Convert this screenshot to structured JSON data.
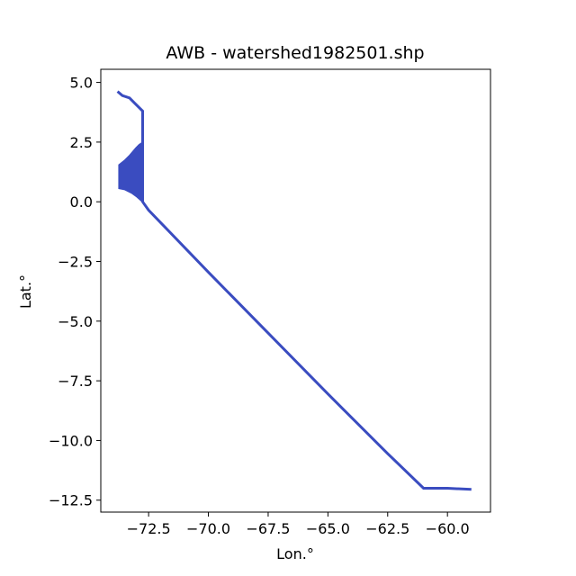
{
  "chart_data": {
    "type": "line",
    "title": "AWB - watershed1982501.shp",
    "xlabel": "Lon.°",
    "ylabel": "Lat.°",
    "xlim": [
      -74.5,
      -58.2
    ],
    "ylim": [
      -13.0,
      5.55
    ],
    "xticks": [
      -72.5,
      -70.0,
      -67.5,
      -65.0,
      -62.5,
      -60.0
    ],
    "xtick_labels": [
      "−72.5",
      "−70.0",
      "−67.5",
      "−65.0",
      "−62.5",
      "−60.0"
    ],
    "yticks": [
      5.0,
      2.5,
      0.0,
      -2.5,
      -5.0,
      -7.5,
      -10.0,
      -12.5
    ],
    "ytick_labels": [
      "5.0",
      "2.5",
      "0.0",
      "−2.5",
      "−5.0",
      "−7.5",
      "−10.0",
      "−12.5"
    ],
    "grid": false,
    "color": "#3a4cc0",
    "series": [
      {
        "points": [
          [
            -73.8,
            4.62
          ],
          [
            -73.6,
            4.45
          ],
          [
            -73.3,
            4.35
          ],
          [
            -73.1,
            4.15
          ],
          [
            -72.9,
            3.95
          ],
          [
            -72.75,
            3.8
          ],
          [
            -72.75,
            2.5
          ],
          [
            -72.75,
            0.0
          ],
          [
            -72.5,
            -0.35
          ],
          [
            -70.0,
            -2.95
          ],
          [
            -67.5,
            -5.5
          ],
          [
            -65.0,
            -8.05
          ],
          [
            -62.5,
            -10.55
          ],
          [
            -61.0,
            -12.0
          ],
          [
            -60.0,
            -12.0
          ],
          [
            -59.0,
            -12.05
          ]
        ]
      }
    ],
    "filled_region": {
      "points": [
        [
          -73.75,
          0.55
        ],
        [
          -73.75,
          1.55
        ],
        [
          -73.5,
          1.75
        ],
        [
          -73.3,
          1.95
        ],
        [
          -73.05,
          2.25
        ],
        [
          -72.9,
          2.4
        ],
        [
          -72.75,
          2.5
        ],
        [
          -72.75,
          -0.02
        ],
        [
          -73.0,
          0.2
        ],
        [
          -73.2,
          0.35
        ],
        [
          -73.5,
          0.5
        ]
      ]
    }
  }
}
